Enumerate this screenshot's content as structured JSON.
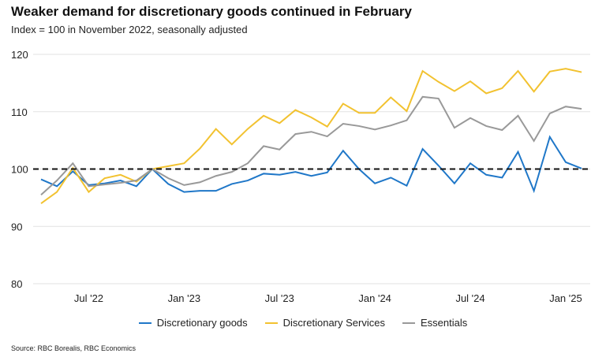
{
  "chart_data": {
    "type": "line",
    "title": "Weaker demand for discretionary goods continued in February",
    "subtitle": "Index = 100 in November 2022, seasonally adjusted",
    "source": "Source: RBC Borealis, RBC Economics",
    "x": [
      "2022-04",
      "2022-05",
      "2022-06",
      "2022-07",
      "2022-08",
      "2022-09",
      "2022-10",
      "2022-11",
      "2022-12",
      "2023-01",
      "2023-02",
      "2023-03",
      "2023-04",
      "2023-05",
      "2023-06",
      "2023-07",
      "2023-08",
      "2023-09",
      "2023-10",
      "2023-11",
      "2023-12",
      "2024-01",
      "2024-02",
      "2024-03",
      "2024-04",
      "2024-05",
      "2024-06",
      "2024-07",
      "2024-08",
      "2024-09",
      "2024-10",
      "2024-11",
      "2024-12",
      "2025-01",
      "2025-02"
    ],
    "x_ticks": [
      {
        "label": "Jul '22",
        "index": 3
      },
      {
        "label": "Jan '23",
        "index": 9
      },
      {
        "label": "Jul '23",
        "index": 15
      },
      {
        "label": "Jan '24",
        "index": 21
      },
      {
        "label": "Jul '24",
        "index": 27
      },
      {
        "label": "Jan '25",
        "index": 33
      }
    ],
    "y_ticks": [
      80,
      90,
      100,
      110,
      120
    ],
    "ylim": [
      80,
      120
    ],
    "grid": "horizontal",
    "reference_line": 100,
    "legend_position": "bottom",
    "series": [
      {
        "name": "Discretionary goods",
        "color": "#1f77c8",
        "values": [
          98.2,
          97,
          99.6,
          97.2,
          97.5,
          98,
          97,
          100,
          97.4,
          96,
          96.2,
          96.2,
          97.4,
          98,
          99.2,
          99,
          99.5,
          98.8,
          99.4,
          103.2,
          100,
          97.5,
          98.5,
          97.1,
          103.5,
          100.6,
          97.5,
          101,
          99,
          98.5,
          103,
          96.2,
          105.6,
          101.2,
          100.1
        ]
      },
      {
        "name": "Discretionary Services",
        "color": "#f2c230",
        "values": [
          94,
          96,
          100.2,
          96,
          98.4,
          99,
          97.8,
          100,
          100.5,
          101,
          103.6,
          107,
          104.3,
          107,
          109.3,
          108,
          110.3,
          109,
          107.4,
          111.4,
          109.8,
          109.8,
          112.5,
          110.1,
          117.1,
          115.2,
          113.6,
          115.3,
          113.2,
          114.1,
          117.1,
          113.5,
          117,
          117.5,
          116.9
        ]
      },
      {
        "name": "Essentials",
        "color": "#999999",
        "values": [
          95.5,
          98,
          101,
          97,
          97.3,
          97.6,
          98,
          100,
          98.4,
          97.2,
          97.7,
          98.8,
          99.5,
          101,
          104,
          103.4,
          106.1,
          106.5,
          105.7,
          107.9,
          107.5,
          106.9,
          107.6,
          108.5,
          112.6,
          112.3,
          107.2,
          108.9,
          107.5,
          106.8,
          109.3,
          104.9,
          109.7,
          110.9,
          110.5
        ]
      }
    ]
  }
}
